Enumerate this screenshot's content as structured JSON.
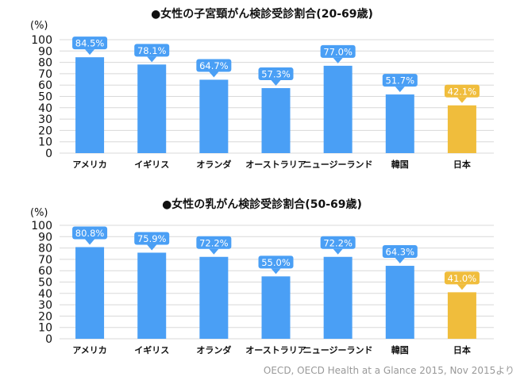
{
  "colors": {
    "bar": "#4a9ff5",
    "highlight": "#f0bd3c",
    "grid": "#d8d8d8"
  },
  "source": "OECD, OECD Health at a Glance 2015, Nov 2015より",
  "chart_data": [
    {
      "type": "bar",
      "title": "●女性の子宮頸がん検診受診割合(20-69歳)",
      "ylabel": "(%)",
      "ylim": [
        0,
        100
      ],
      "yticks": [
        0,
        10,
        20,
        30,
        40,
        50,
        60,
        70,
        80,
        90,
        100
      ],
      "grid": true,
      "categories": [
        "アメリカ",
        "イギリス",
        "オランダ",
        "オーストラリア",
        "ニュージーランド",
        "韓国",
        "日本"
      ],
      "values": [
        84.5,
        78.1,
        64.7,
        57.3,
        77.0,
        51.7,
        42.1
      ],
      "labels": [
        "84.5%",
        "78.1%",
        "64.7%",
        "57.3%",
        "77.0%",
        "51.7%",
        "42.1%"
      ],
      "highlight_index": 6
    },
    {
      "type": "bar",
      "title": "●女性の乳がん検診受診割合(50-69歳)",
      "ylabel": "(%)",
      "ylim": [
        0,
        100
      ],
      "yticks": [
        0,
        10,
        20,
        30,
        40,
        50,
        60,
        70,
        80,
        90,
        100
      ],
      "grid": true,
      "categories": [
        "アメリカ",
        "イギリス",
        "オランダ",
        "オーストラリア",
        "ニュージーランド",
        "韓国",
        "日本"
      ],
      "values": [
        80.8,
        75.9,
        72.2,
        55.0,
        72.2,
        64.3,
        41.0
      ],
      "labels": [
        "80.8%",
        "75.9%",
        "72.2%",
        "55.0%",
        "72.2%",
        "64.3%",
        "41.0%"
      ],
      "highlight_index": 6
    }
  ]
}
